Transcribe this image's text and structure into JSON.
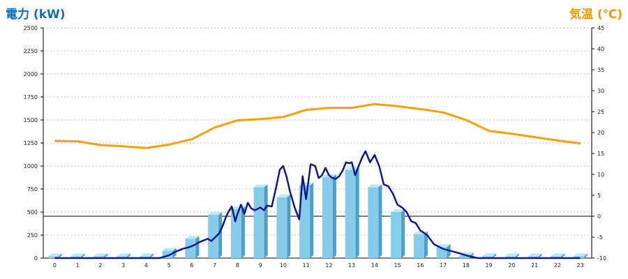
{
  "titles": {
    "left_axis_label": "電力 (kW)",
    "right_axis_label": "気温 (℃)"
  },
  "colors": {
    "bar_top": "#bfe8f7",
    "bar_front": "#87cdeb",
    "bar_side": "#4f9ec8",
    "power_line": "#0c1a8c",
    "temp_line": "#f5a20a",
    "grid": "#bbbbbb",
    "axis": "#000000"
  },
  "chart_data": {
    "type": "bar",
    "categories": [
      "0",
      "1",
      "2",
      "3",
      "4",
      "5",
      "6",
      "7",
      "8",
      "9",
      "10",
      "11",
      "12",
      "13",
      "14",
      "15",
      "16",
      "17",
      "18",
      "19",
      "20",
      "21",
      "22",
      "23"
    ],
    "y_left": {
      "label": "電力 (kW)",
      "ylim": [
        0,
        2500
      ],
      "ticks": [
        "0",
        "250",
        "500",
        "750",
        "1000",
        "1250",
        "1500",
        "1750",
        "2000",
        "2250",
        "2500"
      ]
    },
    "y_right": {
      "label": "気温 (℃)",
      "ylim": [
        -10,
        45
      ],
      "ticks": [
        "-10",
        "-5",
        "0",
        "5",
        "10",
        "15",
        "20",
        "25",
        "30",
        "35",
        "40",
        "45"
      ]
    },
    "grid": true,
    "series": [
      {
        "kind": "bar",
        "axis": "left",
        "values": [
          20,
          20,
          20,
          20,
          20,
          80,
          210,
          470,
          530,
          770,
          660,
          790,
          880,
          960,
          770,
          500,
          260,
          120,
          30,
          20,
          20,
          20,
          20,
          20
        ]
      },
      {
        "kind": "line",
        "axis": "right",
        "values": [
          18,
          17.9,
          17,
          16.7,
          16.3,
          17.1,
          18.4,
          21.2,
          22.9,
          23.2,
          23.7,
          25.4,
          25.9,
          25.9,
          26.8,
          26.3,
          25.6,
          24.8,
          23,
          20.4,
          19.7,
          18.9,
          18.1,
          17.4
        ]
      },
      {
        "kind": "line",
        "axis": "left",
        "x": [
          0,
          0.5,
          1,
          1.5,
          2,
          2.5,
          3,
          3.5,
          4,
          4.3,
          4.6,
          5,
          5.3,
          5.6,
          5.9,
          6.1,
          6.3,
          6.5,
          6.7,
          6.85,
          7,
          7.2,
          7.35,
          7.5,
          7.6,
          7.75,
          7.9,
          8,
          8.15,
          8.3,
          8.45,
          8.6,
          8.75,
          8.85,
          9,
          9.15,
          9.3,
          9.5,
          9.7,
          9.85,
          10,
          10.15,
          10.3,
          10.5,
          10.7,
          10.85,
          11,
          11.2,
          11.4,
          11.55,
          11.7,
          11.85,
          12,
          12.15,
          12.3,
          12.45,
          12.6,
          12.75,
          12.9,
          13,
          13.15,
          13.3,
          13.45,
          13.6,
          13.8,
          14,
          14.2,
          14.4,
          14.6,
          14.8,
          15,
          15.2,
          15.4,
          15.6,
          15.8,
          16,
          16.3,
          16.6,
          17,
          17.3,
          17.6,
          18,
          18.5,
          19,
          20,
          21,
          22,
          23
        ],
        "values": [
          0,
          0,
          0,
          0,
          0,
          0,
          0,
          0,
          0,
          0,
          0,
          30,
          70,
          100,
          120,
          140,
          170,
          190,
          210,
          185,
          220,
          270,
          350,
          450,
          500,
          560,
          400,
          480,
          580,
          480,
          600,
          540,
          520,
          530,
          550,
          520,
          570,
          560,
          780,
          960,
          1000,
          880,
          720,
          550,
          420,
          890,
          640,
          1020,
          1000,
          870,
          900,
          980,
          900,
          870,
          860,
          890,
          950,
          1040,
          1030,
          1040,
          900,
          1000,
          1090,
          1160,
          1040,
          1120,
          1000,
          800,
          780,
          700,
          580,
          550,
          500,
          400,
          380,
          300,
          250,
          150,
          100,
          80,
          60,
          30,
          0,
          0,
          0,
          0,
          0,
          0
        ]
      }
    ]
  }
}
